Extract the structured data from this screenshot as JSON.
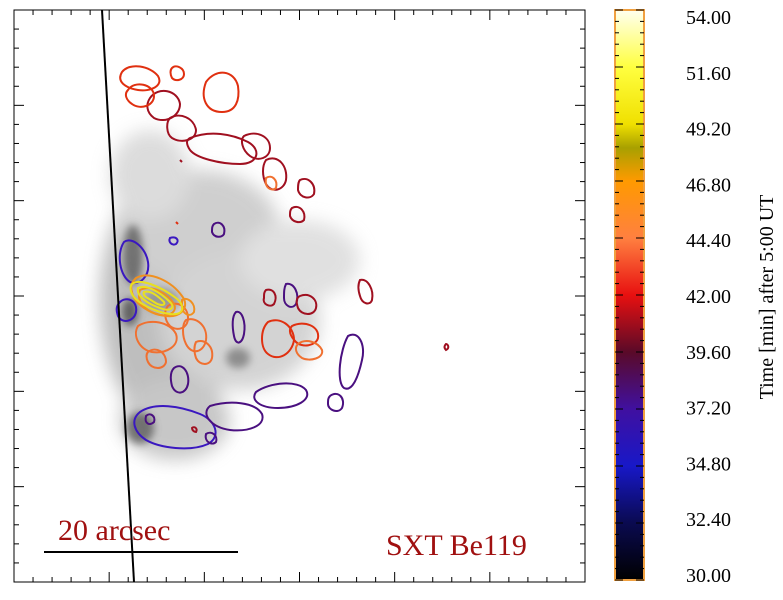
{
  "chart_data": {
    "type": "contour-overlay",
    "scale_label": "20 arcsec",
    "instrument_label": "SXT Be119",
    "colorbar": {
      "label": "Time [min] after  5:00 UT",
      "range": [
        30.0,
        54.0
      ],
      "ticks": [
        "54.00",
        "51.60",
        "49.20",
        "46.80",
        "44.40",
        "42.00",
        "39.60",
        "37.20",
        "34.80",
        "32.40",
        "30.00"
      ],
      "stops": [
        {
          "t": 30.0,
          "color": "#000000"
        },
        {
          "t": 32.4,
          "color": "#0a0a50"
        },
        {
          "t": 34.8,
          "color": "#1818c8"
        },
        {
          "t": 37.2,
          "color": "#4010a0"
        },
        {
          "t": 39.6,
          "color": "#5a0a28"
        },
        {
          "t": 42.0,
          "color": "#e81010"
        },
        {
          "t": 44.4,
          "color": "#ff8040"
        },
        {
          "t": 46.8,
          "color": "#ff9a00"
        },
        {
          "t": 48.2,
          "color": "#a8a000"
        },
        {
          "t": 49.2,
          "color": "#f0e000"
        },
        {
          "t": 51.6,
          "color": "#ffff40"
        },
        {
          "t": 54.0,
          "color": "#fffff0"
        }
      ]
    },
    "contours": [
      {
        "time": 36.0,
        "color": "#3a18c0"
      },
      {
        "time": 37.8,
        "color": "#4a1080"
      },
      {
        "time": 40.2,
        "color": "#a01020"
      },
      {
        "time": 42.5,
        "color": "#e03010"
      },
      {
        "time": 45.0,
        "color": "#f07030"
      },
      {
        "time": 46.9,
        "color": "#f09020"
      },
      {
        "time": 50.0,
        "color": "#e8e020"
      }
    ]
  }
}
